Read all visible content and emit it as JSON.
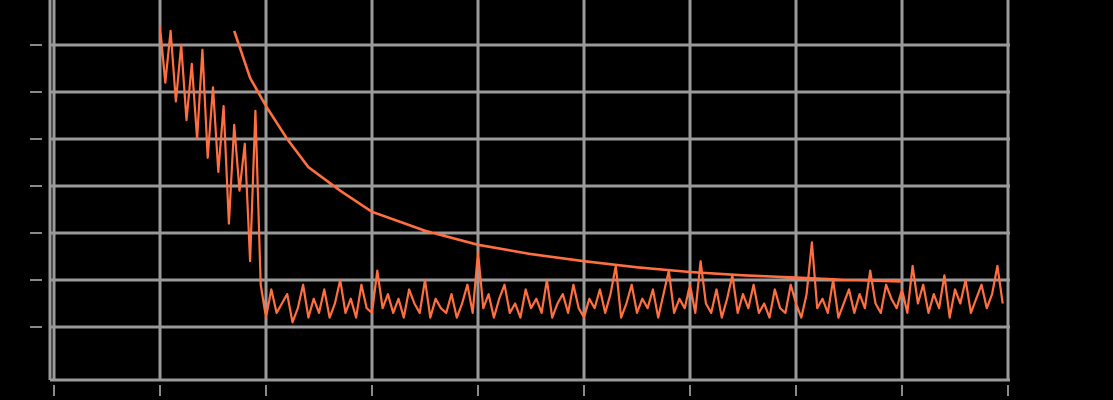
{
  "chart_data": {
    "type": "line",
    "title": "",
    "xlabel": "",
    "ylabel": "",
    "grid": true,
    "legend": "none",
    "colors": {
      "background": "#000000",
      "grid": "#9a9a9a",
      "series": "#ff6f3f"
    },
    "xlim": [
      0,
      8
    ],
    "ylim": [
      -0.5,
      6.5
    ],
    "x_gridlines": [
      -1,
      0,
      1,
      2,
      3,
      4,
      5,
      6,
      7,
      8
    ],
    "y_gridlines": [
      0,
      1,
      2,
      3,
      4,
      5,
      6
    ],
    "series": [
      {
        "kind": "noisy",
        "x": [
          0.0,
          0.05,
          0.1,
          0.15,
          0.2,
          0.25,
          0.3,
          0.35,
          0.4,
          0.45,
          0.5,
          0.55,
          0.6,
          0.65,
          0.7,
          0.75,
          0.8,
          0.85,
          0.9,
          0.95,
          1.0,
          1.05,
          1.1,
          1.15,
          1.2,
          1.25,
          1.3,
          1.35,
          1.4,
          1.45,
          1.5,
          1.55,
          1.6,
          1.65,
          1.7,
          1.75,
          1.8,
          1.85,
          1.9,
          1.95,
          2.0,
          2.05,
          2.1,
          2.15,
          2.2,
          2.25,
          2.3,
          2.35,
          2.4,
          2.45,
          2.5,
          2.55,
          2.6,
          2.65,
          2.7,
          2.75,
          2.8,
          2.85,
          2.9,
          2.95,
          3.0,
          3.05,
          3.1,
          3.15,
          3.2,
          3.25,
          3.3,
          3.35,
          3.4,
          3.45,
          3.5,
          3.55,
          3.6,
          3.65,
          3.7,
          3.75,
          3.8,
          3.85,
          3.9,
          3.95,
          4.0,
          4.05,
          4.1,
          4.15,
          4.2,
          4.25,
          4.3,
          4.35,
          4.4,
          4.45,
          4.5,
          4.55,
          4.6,
          4.65,
          4.7,
          4.75,
          4.8,
          4.85,
          4.9,
          4.95,
          5.0,
          5.05,
          5.1,
          5.15,
          5.2,
          5.25,
          5.3,
          5.35,
          5.4,
          5.45,
          5.5,
          5.55,
          5.6,
          5.65,
          5.7,
          5.75,
          5.8,
          5.85,
          5.9,
          5.95,
          6.0,
          6.05,
          6.1,
          6.15,
          6.2,
          6.25,
          6.3,
          6.35,
          6.4,
          6.45,
          6.5,
          6.55,
          6.6,
          6.65,
          6.7,
          6.75,
          6.8,
          6.85,
          6.9,
          6.95,
          7.0,
          7.05,
          7.1,
          7.15,
          7.2,
          7.25,
          7.3,
          7.35,
          7.4,
          7.45,
          7.5,
          7.55,
          7.6,
          7.65,
          7.7,
          7.75,
          7.8,
          7.85,
          7.9,
          7.95
        ],
        "y": [
          6.4,
          5.2,
          6.3,
          4.8,
          6.0,
          4.4,
          5.6,
          4.0,
          5.9,
          3.6,
          5.1,
          3.3,
          4.7,
          2.2,
          4.3,
          2.9,
          3.9,
          1.4,
          4.6,
          0.9,
          0.2,
          0.8,
          0.3,
          0.5,
          0.7,
          0.1,
          0.4,
          0.9,
          0.2,
          0.6,
          0.3,
          0.8,
          0.2,
          0.5,
          1.0,
          0.3,
          0.6,
          0.2,
          0.9,
          0.4,
          0.3,
          1.2,
          0.4,
          0.7,
          0.3,
          0.6,
          0.2,
          0.8,
          0.5,
          0.3,
          1.0,
          0.2,
          0.6,
          0.4,
          0.3,
          0.7,
          0.2,
          0.5,
          0.9,
          0.3,
          1.6,
          0.4,
          0.7,
          0.2,
          0.6,
          0.9,
          0.3,
          0.5,
          0.2,
          0.8,
          0.4,
          0.6,
          0.3,
          1.0,
          0.2,
          0.5,
          0.7,
          0.3,
          0.9,
          0.4,
          0.2,
          0.6,
          0.4,
          0.8,
          0.3,
          0.7,
          1.3,
          0.2,
          0.5,
          0.9,
          0.3,
          0.6,
          0.4,
          0.8,
          0.2,
          0.7,
          1.2,
          0.3,
          0.6,
          0.4,
          0.9,
          0.3,
          1.4,
          0.5,
          0.3,
          0.8,
          0.2,
          0.6,
          1.1,
          0.3,
          0.7,
          0.4,
          0.9,
          0.3,
          0.5,
          0.2,
          0.8,
          0.4,
          0.3,
          0.9,
          0.5,
          0.2,
          0.7,
          1.8,
          0.4,
          0.6,
          0.3,
          1.0,
          0.2,
          0.5,
          0.8,
          0.3,
          0.7,
          0.4,
          1.2,
          0.5,
          0.3,
          0.9,
          0.6,
          0.4,
          0.8,
          0.3,
          1.3,
          0.5,
          0.9,
          0.3,
          0.7,
          0.4,
          1.1,
          0.2,
          0.8,
          0.5,
          1.0,
          0.3,
          0.6,
          0.9,
          0.4,
          0.7,
          1.3,
          0.5
        ]
      },
      {
        "kind": "smooth",
        "x": [
          0.7,
          0.85,
          1.0,
          1.2,
          1.4,
          1.7,
          2.0,
          2.5,
          3.0,
          3.5,
          4.0,
          4.5,
          5.0,
          5.5,
          6.0,
          6.5,
          7.0
        ],
        "y": [
          6.3,
          5.3,
          4.7,
          4.0,
          3.4,
          2.9,
          2.45,
          2.05,
          1.75,
          1.55,
          1.4,
          1.27,
          1.17,
          1.1,
          1.05,
          1.0,
          0.97
        ]
      }
    ]
  }
}
